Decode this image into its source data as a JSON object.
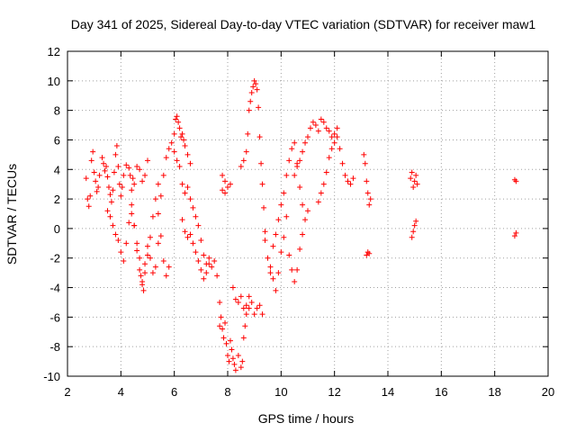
{
  "chart_data": {
    "type": "scatter",
    "title": "Day 341 of 2025, Sidereal Day-to-day VTEC variation (SDTVAR) for receiver maw1",
    "xlabel": "GPS time / hours",
    "ylabel": "SDTVAR / TECUs",
    "xlim": [
      2,
      20
    ],
    "ylim": [
      -10,
      12
    ],
    "xticks": [
      2,
      4,
      6,
      8,
      10,
      12,
      14,
      16,
      18,
      20
    ],
    "yticks": [
      -10,
      -8,
      -6,
      -4,
      -2,
      0,
      2,
      4,
      6,
      8,
      10,
      12
    ],
    "grid": true,
    "marker": "+",
    "color": "#ff0000",
    "series": [
      {
        "name": "SDTVAR",
        "x": [
          2.7,
          2.75,
          2.8,
          2.85,
          2.9,
          2.95,
          3.0,
          3.05,
          3.1,
          3.15,
          3.2,
          3.3,
          3.35,
          3.4,
          3.45,
          3.5,
          3.55,
          3.6,
          3.65,
          3.7,
          3.75,
          3.8,
          3.85,
          3.9,
          3.95,
          4.0,
          4.05,
          4.1,
          4.2,
          4.3,
          4.35,
          4.4,
          4.45,
          4.5,
          4.6,
          4.7,
          4.8,
          4.9,
          5.0,
          3.5,
          3.6,
          3.7,
          3.8,
          3.9,
          4.0,
          4.1,
          4.2,
          4.3,
          4.4,
          4.5,
          4.6,
          4.7,
          4.8,
          4.9,
          5.0,
          5.1,
          5.2,
          5.3,
          5.4,
          4.4,
          4.5,
          4.6,
          4.7,
          4.75,
          4.8,
          4.85,
          4.9,
          5.0,
          5.1,
          5.2,
          5.3,
          5.4,
          5.5,
          5.6,
          5.7,
          5.8,
          5.4,
          5.5,
          5.6,
          5.7,
          5.8,
          5.9,
          6.0,
          6.05,
          6.1,
          6.15,
          6.2,
          6.25,
          6.3,
          6.35,
          6.4,
          6.5,
          6.6,
          6.0,
          6.1,
          6.2,
          6.3,
          6.4,
          6.5,
          6.6,
          6.7,
          6.8,
          6.9,
          7.0,
          7.1,
          7.2,
          7.3,
          6.3,
          6.4,
          6.5,
          6.6,
          6.7,
          6.8,
          6.9,
          7.0,
          7.1,
          7.2,
          7.3,
          7.4,
          7.5,
          7.6,
          7.7,
          7.8,
          7.9,
          7.7,
          7.75,
          7.8,
          7.85,
          7.9,
          7.95,
          8.0,
          8.05,
          8.1,
          8.15,
          8.2,
          8.25,
          8.3,
          8.4,
          8.5,
          8.55,
          8.6,
          8.65,
          8.7,
          8.8,
          7.8,
          7.9,
          8.0,
          8.1,
          8.2,
          8.3,
          8.4,
          8.5,
          8.6,
          8.7,
          8.8,
          8.9,
          9.0,
          9.1,
          9.2,
          9.3,
          8.5,
          8.6,
          8.7,
          8.75,
          8.8,
          8.85,
          8.9,
          8.95,
          9.0,
          9.05,
          9.1,
          9.15,
          9.2,
          9.25,
          9.3,
          9.35,
          9.4,
          9.4,
          9.5,
          9.6,
          9.7,
          9.8,
          9.9,
          10.0,
          10.1,
          10.2,
          10.3,
          10.4,
          10.5,
          10.6,
          10.7,
          10.8,
          9.6,
          9.7,
          9.8,
          9.9,
          10.0,
          10.1,
          10.2,
          10.3,
          10.4,
          10.5,
          10.6,
          10.7,
          10.8,
          10.9,
          11.0,
          10.5,
          10.6,
          10.7,
          10.8,
          10.9,
          11.0,
          11.1,
          11.2,
          11.3,
          11.4,
          11.5,
          11.6,
          11.7,
          11.8,
          11.9,
          12.0,
          12.1,
          11.4,
          11.5,
          11.6,
          11.7,
          11.8,
          11.9,
          12.0,
          12.1,
          12.2,
          12.3,
          12.4,
          12.5,
          12.6,
          12.7,
          13.1,
          13.15,
          13.2,
          13.25,
          13.3,
          13.35,
          13.2,
          13.25,
          13.3,
          14.85,
          14.9,
          14.95,
          15.0,
          15.05,
          15.1,
          14.9,
          14.95,
          15.0,
          15.05,
          18.75,
          18.8,
          18.75,
          18.8
        ],
        "y": [
          3.4,
          2.0,
          1.5,
          2.2,
          4.6,
          5.2,
          3.8,
          3.2,
          2.5,
          2.8,
          3.6,
          4.8,
          4.4,
          3.9,
          4.2,
          3.5,
          2.8,
          2.3,
          1.8,
          2.6,
          3.8,
          5.0,
          5.6,
          4.2,
          3.0,
          2.2,
          2.8,
          3.6,
          4.3,
          4.1,
          3.6,
          2.6,
          3.4,
          3.0,
          4.2,
          4.0,
          3.2,
          3.6,
          4.6,
          1.2,
          0.8,
          0.2,
          -0.4,
          -0.8,
          -1.6,
          -2.2,
          -1.0,
          0.4,
          1.6,
          0.2,
          -1.5,
          -2.8,
          -3.6,
          -2.4,
          -1.2,
          -2.0,
          -3.0,
          -2.6,
          -1.0,
          1.0,
          0.2,
          -1.0,
          -2.0,
          -3.2,
          -3.8,
          -4.2,
          -3.0,
          -1.8,
          -0.6,
          0.8,
          2.0,
          3.0,
          -0.5,
          -2.2,
          -3.2,
          -2.6,
          1.0,
          2.2,
          3.6,
          4.8,
          5.4,
          5.8,
          6.4,
          7.4,
          7.6,
          7.2,
          6.8,
          6.2,
          6.4,
          6.0,
          5.6,
          5.0,
          4.4,
          5.2,
          4.6,
          4.2,
          3.0,
          2.4,
          2.8,
          2.0,
          1.4,
          0.8,
          0.2,
          -0.8,
          -1.8,
          -2.4,
          -2.0,
          0.6,
          -0.2,
          -0.6,
          -0.4,
          -1.0,
          -1.6,
          -2.2,
          -2.8,
          -3.4,
          -3.0,
          -2.4,
          -2.6,
          -2.2,
          -3.2,
          -6.6,
          3.6,
          3.2,
          -5.0,
          -6.0,
          -6.8,
          -7.4,
          -6.4,
          -7.8,
          -8.6,
          -9.0,
          -7.6,
          -8.2,
          -8.8,
          -9.2,
          -9.6,
          -8.6,
          -9.4,
          -9.0,
          -7.4,
          -6.6,
          -5.8,
          -5.4,
          2.6,
          2.4,
          2.8,
          3.0,
          -4.0,
          -4.8,
          -5.0,
          -4.6,
          -5.4,
          -5.2,
          -4.6,
          -5.0,
          -5.8,
          -5.4,
          -5.2,
          -5.8,
          4.2,
          4.6,
          5.2,
          6.4,
          8.0,
          8.6,
          9.2,
          9.6,
          10.0,
          9.8,
          9.4,
          8.2,
          6.2,
          4.4,
          3.0,
          1.4,
          -0.2,
          -0.8,
          -2.0,
          -3.0,
          -1.2,
          -0.4,
          0.6,
          1.6,
          2.4,
          3.6,
          4.6,
          5.4,
          5.8,
          4.2,
          2.8,
          1.6,
          -2.6,
          -3.4,
          -4.2,
          -3.0,
          -1.6,
          -0.6,
          0.8,
          -1.8,
          -2.8,
          -3.6,
          -2.8,
          -1.4,
          -0.4,
          0.6,
          1.2,
          3.6,
          4.4,
          4.6,
          5.2,
          5.8,
          6.2,
          6.8,
          7.2,
          7.0,
          6.6,
          7.4,
          7.2,
          6.8,
          6.6,
          6.2,
          6.4,
          6.8,
          1.8,
          2.4,
          3.0,
          3.8,
          4.8,
          5.4,
          5.8,
          6.2,
          5.4,
          4.4,
          3.6,
          3.2,
          3.0,
          3.4,
          5.0,
          4.4,
          3.2,
          2.4,
          1.6,
          2.0,
          -1.8,
          -1.6,
          -1.7,
          3.4,
          3.8,
          2.8,
          3.2,
          3.6,
          3.0,
          -0.6,
          -0.2,
          0.2,
          0.5,
          3.3,
          3.2,
          -0.5,
          -0.3
        ]
      }
    ]
  }
}
